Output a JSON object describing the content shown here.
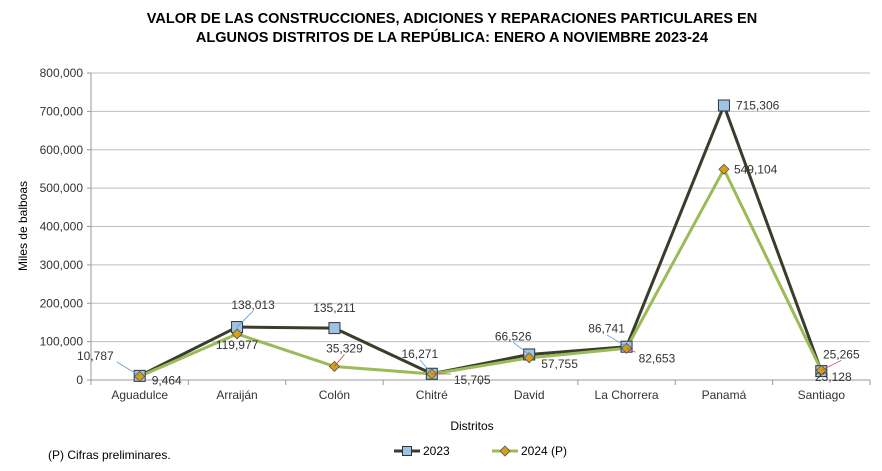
{
  "chart_data": {
    "type": "line",
    "title_lines": [
      "VALOR DE LAS CONSTRUCCIONES, ADICIONES Y REPARACIONES PARTICULARES EN",
      "ALGUNOS DISTRITOS DE LA REPÚBLICA: ENERO A NOVIEMBRE 2023-24"
    ],
    "xlabel": "Distritos",
    "ylabel": "Miles de balboas",
    "ylim": [
      0,
      800000
    ],
    "yticks": [
      0,
      100000,
      200000,
      300000,
      400000,
      500000,
      600000,
      700000,
      800000
    ],
    "ytick_labels": [
      "0",
      "100,000",
      "200,000",
      "300,000",
      "400,000",
      "500,000",
      "600,000",
      "700,000",
      "800,000"
    ],
    "grid": true,
    "legend_position": "bottom",
    "categories": [
      "Aguadulce",
      "Arraiján",
      "Colón",
      "Chitré",
      "David",
      "La Chorrera",
      "Panamá",
      "Santiago"
    ],
    "series": [
      {
        "name": "2023",
        "color": "#3c3c2c",
        "marker": "square",
        "marker_color": "#9dc3e6",
        "values": [
          10787,
          138013,
          135211,
          16271,
          66526,
          86741,
          715306,
          23128
        ],
        "labels": [
          "10,787",
          "138,013",
          "135,211",
          "16,271",
          "66,526",
          "86,741",
          "715,306",
          "23,128"
        ]
      },
      {
        "name": "2024 (P)",
        "color": "#9bbb59",
        "marker": "diamond",
        "marker_color": "#d4a017",
        "values": [
          9464,
          119977,
          35329,
          15705,
          57755,
          82653,
          549104,
          25265
        ],
        "labels": [
          "9,464",
          "119,977",
          "35,329",
          "15,705",
          "57,755",
          "82,653",
          "549,104",
          "25,265"
        ]
      }
    ]
  },
  "footnote": "(P) Cifras  preliminares."
}
